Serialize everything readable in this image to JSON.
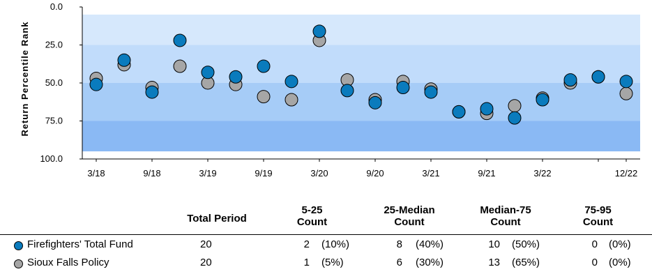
{
  "chart_data": {
    "type": "scatter",
    "ylabel": "Return Percentile Rank",
    "y_reversed": true,
    "ylim": [
      0,
      100
    ],
    "y_ticks": [
      "0.0",
      "25.0",
      "50.0",
      "75.0",
      "100.0"
    ],
    "bands": [
      {
        "from": 5,
        "to": 25,
        "color": "#d6e8fc"
      },
      {
        "from": 25,
        "to": 50,
        "color": "#c1dcfb"
      },
      {
        "from": 50,
        "to": 75,
        "color": "#a6ccf7"
      },
      {
        "from": 75,
        "to": 95,
        "color": "#8ab9f4"
      }
    ],
    "x_ticks": [
      "3/18",
      "9/18",
      "3/19",
      "9/19",
      "3/20",
      "9/20",
      "3/21",
      "9/21",
      "3/22",
      "",
      "12/22"
    ],
    "x": [
      "3/18",
      "6/18",
      "9/18",
      "12/18",
      "3/19",
      "6/19",
      "9/19",
      "12/19",
      "3/20",
      "6/20",
      "9/20",
      "12/20",
      "3/21",
      "6/21",
      "9/21",
      "12/21",
      "3/22",
      "6/22",
      "9/22",
      "12/22"
    ],
    "series": [
      {
        "name": "Sioux Falls Policy",
        "color": "#a6a6a6",
        "values": [
          47,
          38,
          53,
          39,
          50,
          51,
          59,
          61,
          22,
          48,
          61,
          49,
          54,
          69,
          70,
          65,
          60,
          50,
          46,
          57
        ]
      },
      {
        "name": "Firefighters' Total Fund",
        "color": "#0a7bbd",
        "values": [
          51,
          35,
          56,
          22,
          43,
          46,
          39,
          49,
          16,
          55,
          63,
          53,
          56,
          69,
          67,
          73,
          61,
          48,
          46,
          49
        ]
      }
    ]
  },
  "table": {
    "headers": {
      "total": "Total Period",
      "c1_line1": "5-25",
      "c1_line2": "Count",
      "c2_line1": "25-Median",
      "c2_line2": "Count",
      "c3_line1": "Median-75",
      "c3_line2": "Count",
      "c4_line1": "75-95",
      "c4_line2": "Count"
    },
    "rows": [
      {
        "name": "Firefighters' Total Fund",
        "color": "#0a7bbd",
        "total": "20",
        "c1": "2",
        "c1p": "(10%)",
        "c2": "8",
        "c2p": "(40%)",
        "c3": "10",
        "c3p": "(50%)",
        "c4": "0",
        "c4p": "(0%)"
      },
      {
        "name": "Sioux Falls Policy",
        "color": "#a6a6a6",
        "total": "20",
        "c1": "1",
        "c1p": "(5%)",
        "c2": "6",
        "c2p": "(30%)",
        "c3": "13",
        "c3p": "(65%)",
        "c4": "0",
        "c4p": "(0%)"
      }
    ]
  }
}
